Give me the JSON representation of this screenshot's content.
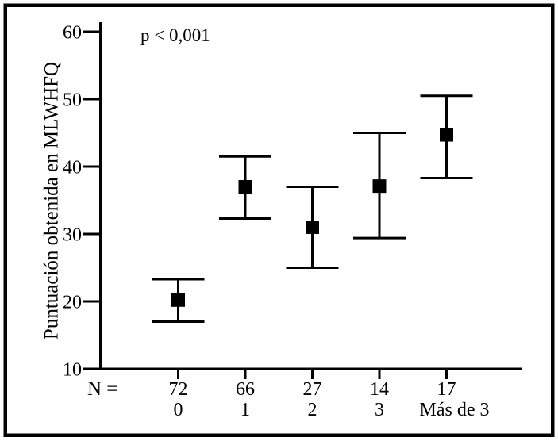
{
  "figure": {
    "background": "#ffffff",
    "border_color": "#000000",
    "ink_color": "#000000"
  },
  "chart_data": {
    "type": "errorbar",
    "ylabel": "Puntuación obtenida en MLWHFQ",
    "annotation": "p < 0,001",
    "x_prefix_label": "N =",
    "categories": [
      "0",
      "1",
      "2",
      "3",
      "Más de 3"
    ],
    "n_values": [
      72,
      66,
      27,
      14,
      17
    ],
    "series": [
      {
        "mean": [
          20.2,
          37.0,
          31.0,
          37.1,
          44.7
        ],
        "ci_low": [
          17.0,
          32.3,
          25.0,
          29.4,
          38.3
        ],
        "ci_high": [
          23.3,
          41.5,
          37.0,
          45.0,
          50.5
        ]
      }
    ],
    "yticks": [
      10,
      20,
      30,
      40,
      50,
      60
    ],
    "ylim": [
      10,
      60
    ],
    "grid": false,
    "marker": "filled-square",
    "line_color": "#000000",
    "background": "#ffffff"
  }
}
